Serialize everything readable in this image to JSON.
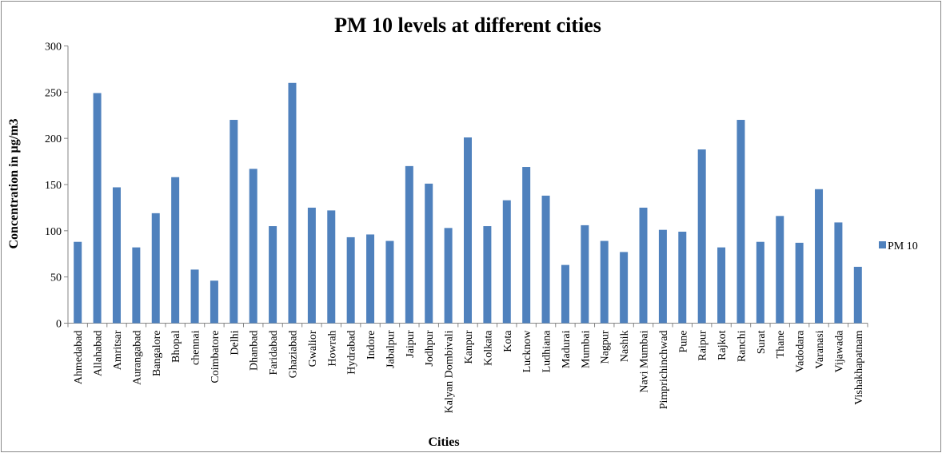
{
  "chart_data": {
    "type": "bar",
    "title": "PM 10 levels at different cities",
    "xlabel": "Cities",
    "ylabel": "Concentration in µg/m3",
    "ylim": [
      0,
      300
    ],
    "yticks": [
      0,
      50,
      100,
      150,
      200,
      250,
      300
    ],
    "grid": false,
    "legend_position": "right",
    "bar_color": "#4f81bd",
    "categories": [
      "Ahmedabad",
      "Allahabad",
      "Amritsar",
      "Aurangabad",
      "Bangalore",
      "Bhopal",
      "chennai",
      "Coimbatore",
      "Delhi",
      "Dhanbad",
      "Faridabad",
      "Ghaziabad",
      "Gwalior",
      "Howrah",
      "Hydrabad",
      "Indore",
      "Jabalpur",
      "Jaipur",
      "Jodhpur",
      "Kalyan Dombivali",
      "Kanpur",
      "Kolkata",
      "Kota",
      "Lucknow",
      "Ludhiana",
      "Madurai",
      "Mumbai",
      "Nagpur",
      "Nashik",
      "Navi Mumbai",
      "Pimprichinchwad",
      "Pune",
      "Raipur",
      "Rajkot",
      "Ranchi",
      "Surat",
      "Thane",
      "Vadodara",
      "Varanasi",
      "Vijawada",
      "Vishakhapatnam"
    ],
    "series": [
      {
        "name": "PM 10",
        "values": [
          88,
          249,
          147,
          82,
          119,
          158,
          58,
          46,
          220,
          167,
          105,
          260,
          125,
          122,
          93,
          96,
          89,
          170,
          151,
          103,
          201,
          105,
          133,
          169,
          138,
          63,
          106,
          89,
          77,
          125,
          101,
          99,
          188,
          82,
          220,
          88,
          116,
          87,
          145,
          109,
          61
        ]
      }
    ]
  }
}
